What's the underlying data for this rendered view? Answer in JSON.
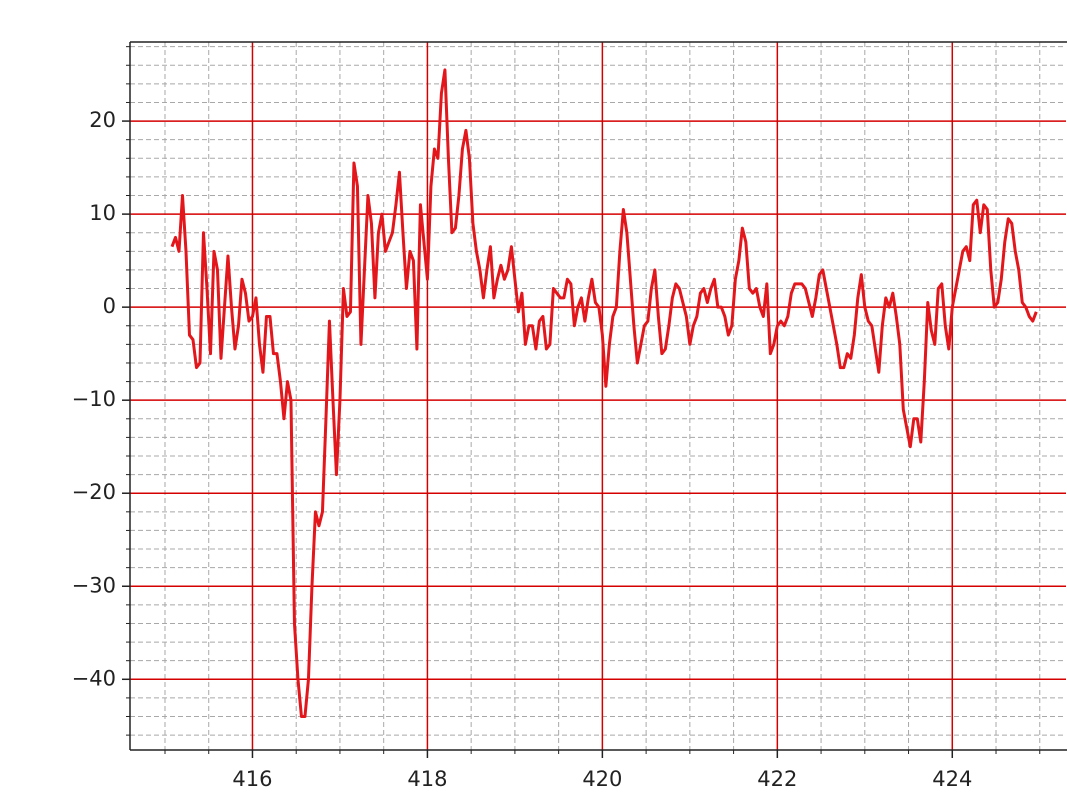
{
  "chart_data": {
    "type": "line",
    "x": [
      415.08,
      415.12,
      415.16,
      415.2,
      415.24,
      415.28,
      415.32,
      415.36,
      415.4,
      415.44,
      415.48,
      415.52,
      415.56,
      415.6,
      415.64,
      415.68,
      415.72,
      415.76,
      415.8,
      415.84,
      415.88,
      415.92,
      415.96,
      416.0,
      416.04,
      416.08,
      416.12,
      416.16,
      416.2,
      416.24,
      416.28,
      416.32,
      416.36,
      416.4,
      416.44,
      416.48,
      416.52,
      416.56,
      416.6,
      416.64,
      416.68,
      416.72,
      416.76,
      416.8,
      416.84,
      416.88,
      416.92,
      416.96,
      417.0,
      417.04,
      417.08,
      417.12,
      417.16,
      417.2,
      417.24,
      417.28,
      417.32,
      417.36,
      417.4,
      417.44,
      417.48,
      417.52,
      417.56,
      417.6,
      417.64,
      417.68,
      417.72,
      417.76,
      417.8,
      417.84,
      417.88,
      417.92,
      417.96,
      418.0,
      418.04,
      418.08,
      418.12,
      418.16,
      418.2,
      418.24,
      418.28,
      418.32,
      418.36,
      418.4,
      418.44,
      418.48,
      418.52,
      418.56,
      418.6,
      418.64,
      418.68,
      418.72,
      418.76,
      418.8,
      418.84,
      418.88,
      418.92,
      418.96,
      419.0,
      419.04,
      419.08,
      419.12,
      419.16,
      419.2,
      419.24,
      419.28,
      419.32,
      419.36,
      419.4,
      419.44,
      419.48,
      419.52,
      419.56,
      419.6,
      419.64,
      419.68,
      419.72,
      419.76,
      419.8,
      419.84,
      419.88,
      419.92,
      419.96,
      420.0,
      420.04,
      420.08,
      420.12,
      420.16,
      420.2,
      420.24,
      420.28,
      420.32,
      420.36,
      420.4,
      420.44,
      420.48,
      420.52,
      420.56,
      420.6,
      420.64,
      420.68,
      420.72,
      420.76,
      420.8,
      420.84,
      420.88,
      420.92,
      420.96,
      421.0,
      421.04,
      421.08,
      421.12,
      421.16,
      421.2,
      421.24,
      421.28,
      421.32,
      421.36,
      421.4,
      421.44,
      421.48,
      421.52,
      421.56,
      421.6,
      421.64,
      421.68,
      421.72,
      421.76,
      421.8,
      421.84,
      421.88,
      421.92,
      421.96,
      422.0,
      422.04,
      422.08,
      422.12,
      422.16,
      422.2,
      422.24,
      422.28,
      422.32,
      422.36,
      422.4,
      422.44,
      422.48,
      422.52,
      422.56,
      422.6,
      422.64,
      422.68,
      422.72,
      422.76,
      422.8,
      422.84,
      422.88,
      422.92,
      422.96,
      423.0,
      423.04,
      423.08,
      423.12,
      423.16,
      423.2,
      423.24,
      423.28,
      423.32,
      423.36,
      423.4,
      423.44,
      423.48,
      423.52,
      423.56,
      423.6,
      423.64,
      423.68,
      423.72,
      423.76,
      423.8,
      423.84,
      423.88,
      423.92,
      423.96,
      424.0,
      424.04,
      424.08,
      424.12,
      424.16,
      424.2,
      424.24,
      424.28,
      424.32,
      424.36,
      424.4,
      424.44,
      424.48,
      424.52,
      424.56,
      424.6,
      424.64,
      424.68,
      424.72,
      424.76,
      424.8,
      424.84,
      424.88,
      424.92,
      424.96
    ],
    "series": [
      {
        "color": "#e3161b",
        "values": [
          6.5,
          7.5,
          6,
          12,
          6,
          -3,
          -3.5,
          -6.5,
          -6,
          8,
          2,
          -5,
          6,
          4,
          -5.5,
          0,
          5.5,
          0,
          -4.5,
          -2,
          3,
          1.5,
          -1.5,
          -1,
          1,
          -4,
          -7,
          -1,
          -1,
          -5,
          -5,
          -8,
          -12,
          -8,
          -10,
          -34,
          -40,
          -44,
          -44,
          -40,
          -30,
          -22,
          -23.5,
          -22,
          -12,
          -1.5,
          -10,
          -18,
          -10,
          2,
          -1,
          -0.5,
          15.5,
          13,
          -4,
          4,
          12,
          9,
          1,
          8,
          10,
          6,
          7,
          8,
          11,
          14.5,
          8,
          2,
          6,
          5,
          -4.5,
          11,
          7,
          3,
          13,
          17,
          16,
          23,
          25.5,
          16,
          8,
          8.5,
          12,
          17,
          19,
          16,
          9,
          6,
          4,
          1,
          4,
          6.5,
          1,
          3,
          4.5,
          3,
          4,
          6.5,
          3,
          -0.5,
          1.5,
          -4,
          -2,
          -2,
          -4.5,
          -1.5,
          -1,
          -4.5,
          -4,
          2,
          1.5,
          1,
          1,
          3,
          2.5,
          -2,
          0,
          1,
          -1.5,
          1,
          3,
          0.5,
          0,
          -3,
          -8.5,
          -4,
          -1,
          0,
          6,
          10.5,
          8,
          3,
          -2,
          -6,
          -4,
          -2,
          -1.5,
          2,
          4,
          -1,
          -5,
          -4.5,
          -2,
          1,
          2.5,
          2,
          0.5,
          -1,
          -4,
          -2,
          -1,
          1.5,
          2,
          0.5,
          2,
          3,
          0,
          0,
          -1,
          -3,
          -2,
          3,
          5,
          8.5,
          7,
          2,
          1.5,
          2,
          0,
          -1,
          2.5,
          -5,
          -4,
          -2,
          -1.5,
          -2,
          -1,
          1.5,
          2.5,
          2.5,
          2.5,
          2,
          0.5,
          -1,
          1,
          3.5,
          4,
          2,
          0,
          -2,
          -4,
          -6.5,
          -6.5,
          -5,
          -5.5,
          -3,
          1,
          3.5,
          0,
          -1.5,
          -2,
          -4.5,
          -7,
          -2,
          1,
          0,
          1.5,
          -1,
          -4,
          -11,
          -13,
          -15,
          -12,
          -12,
          -14.5,
          -8,
          0.5,
          -2.5,
          -4,
          2,
          2.5,
          -2,
          -4.5,
          0,
          2,
          4,
          6,
          6.5,
          5,
          11,
          11.5,
          8,
          11,
          10.5,
          4,
          0,
          0.5,
          3,
          7,
          9.5,
          9,
          6,
          4,
          0.5,
          0,
          -1,
          -1.5,
          -0.5
        ]
      }
    ],
    "xlim": [
      414.6,
      425.3
    ],
    "ylim": [
      -47.6,
      28.5
    ],
    "xticks": [
      416,
      418,
      420,
      422,
      424
    ],
    "yticks": [
      {
        "value": -40,
        "label": "−40"
      },
      {
        "value": -30,
        "label": "−30"
      },
      {
        "value": -20,
        "label": "−20"
      },
      {
        "value": -10,
        "label": "−10"
      },
      0,
      10,
      20
    ],
    "xminorticks": [
      415,
      415.5,
      416.5,
      417,
      417.5,
      418.5,
      419,
      419.5,
      420.5,
      421,
      421.5,
      422.5,
      423,
      423.5,
      424.5,
      425
    ],
    "yminorticks": [
      -46,
      -44,
      -42,
      -38,
      -36,
      -34,
      -32,
      -28,
      -26,
      -24,
      -22,
      -18,
      -16,
      -14,
      -12,
      -8,
      -6,
      -4,
      -2,
      2,
      4,
      6,
      8,
      12,
      14,
      16,
      18,
      22,
      24,
      26,
      28
    ],
    "grid": true,
    "grid_color": "#d40000",
    "minor_grid_color": "#a8a8a8"
  }
}
